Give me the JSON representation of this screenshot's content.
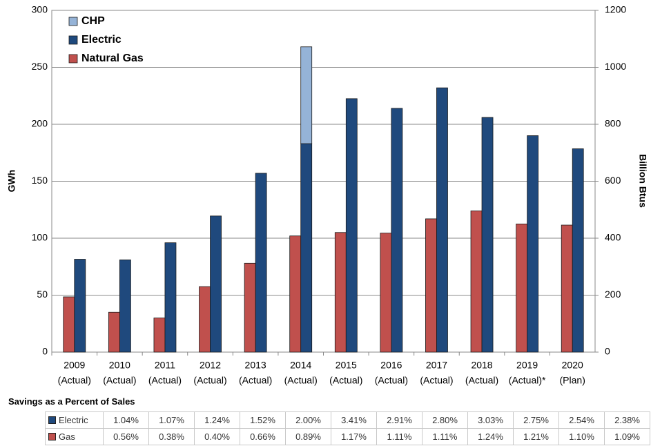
{
  "chart_data": {
    "type": "bar",
    "categories": [
      "2009",
      "2010",
      "2011",
      "2012",
      "2013",
      "2014",
      "2015",
      "2016",
      "2017",
      "2018",
      "2019",
      "2020"
    ],
    "category_notes": [
      "(Actual)",
      "(Actual)",
      "(Actual)",
      "(Actual)",
      "(Actual)",
      "(Actual)",
      "(Actual)",
      "(Actual)",
      "(Actual)",
      "(Actual)",
      "(Actual)*",
      "(Plan)"
    ],
    "series": [
      {
        "name": "Natural Gas",
        "color": "#c0504d",
        "axis": "y2",
        "values": [
          194,
          140,
          120,
          230,
          312,
          408,
          420,
          418,
          468,
          496,
          450,
          446
        ]
      },
      {
        "name": "Electric",
        "color": "#1f497d",
        "values": [
          81.5,
          81,
          96,
          119.5,
          157,
          183,
          222.5,
          214,
          232,
          206,
          190,
          178.5
        ]
      },
      {
        "name": "CHP",
        "color": "#95b3d7",
        "stack": true,
        "values": [
          null,
          null,
          null,
          null,
          null,
          85,
          null,
          null,
          null,
          null,
          null,
          null
        ]
      }
    ],
    "legend_reversed": true,
    "ylabel": "GWh",
    "y2label": "Billion Btus",
    "ylim": [
      0,
      300
    ],
    "yticks": [
      0,
      50,
      100,
      150,
      200,
      250,
      300
    ],
    "y2lim": [
      0,
      1200
    ],
    "y2ticks": [
      0,
      200,
      400,
      600,
      800,
      1000,
      1200
    ],
    "grid": true
  },
  "table": {
    "title": "Savings as a Percent of Sales",
    "rows": [
      {
        "label": "Electric",
        "color": "#1f497d",
        "cells": [
          "1.04%",
          "1.07%",
          "1.24%",
          "1.52%",
          "2.00%",
          "3.41%",
          "2.91%",
          "2.80%",
          "3.03%",
          "2.75%",
          "2.54%",
          "2.38%"
        ]
      },
      {
        "label": "Gas",
        "color": "#c0504d",
        "cells": [
          "0.56%",
          "0.38%",
          "0.40%",
          "0.66%",
          "0.89%",
          "1.17%",
          "1.11%",
          "1.11%",
          "1.24%",
          "1.21%",
          "1.10%",
          "1.09%"
        ]
      }
    ]
  }
}
